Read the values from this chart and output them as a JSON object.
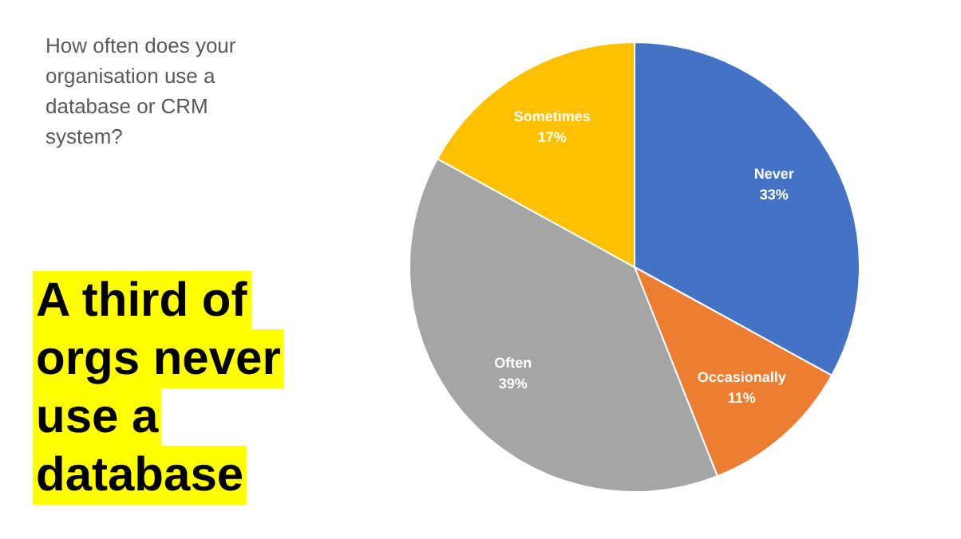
{
  "chart_data": {
    "type": "pie",
    "title": "A third of orgs never use a database",
    "subtitle": "How often does your organisation use a database or CRM system?",
    "categories": [
      "Never",
      "Occasionally",
      "Often",
      "Sometimes"
    ],
    "values": [
      33,
      11,
      39,
      17
    ],
    "colors": [
      "#4472c4",
      "#ed7d31",
      "#a5a5a5",
      "#ffc000"
    ],
    "value_labels": [
      "33%",
      "11%",
      "39%",
      "17%"
    ]
  }
}
